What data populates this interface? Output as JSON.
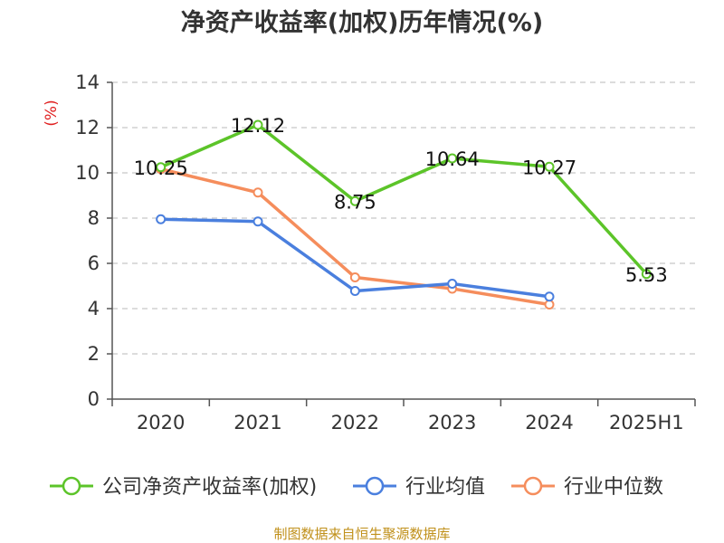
{
  "source": "制图数据来自恒生聚源数据库",
  "chart_data": {
    "type": "line",
    "title": "净资产收益率(加权)历年情况(%)",
    "ylabel": "(%)",
    "xlabel": "",
    "categories": [
      "2020",
      "2021",
      "2022",
      "2023",
      "2024",
      "2025H1"
    ],
    "ylim": [
      0,
      14
    ],
    "yticks": [
      0,
      2,
      4,
      6,
      8,
      10,
      12,
      14
    ],
    "grid": true,
    "legend_position": "bottom",
    "series": [
      {
        "name": "公司净资产收益率(加权)",
        "color": "#5cc429",
        "values": [
          10.25,
          12.12,
          8.75,
          10.64,
          10.27,
          5.53
        ],
        "labels": [
          "10.25",
          "12.12",
          "8.75",
          "10.64",
          "10.27",
          "5.53"
        ]
      },
      {
        "name": "行业均值",
        "color": "#4a7fde",
        "values": [
          7.95,
          7.85,
          4.78,
          5.1,
          4.53,
          null
        ],
        "labels": []
      },
      {
        "name": "行业中位数",
        "color": "#f58d5c",
        "values": [
          10.17,
          9.13,
          5.38,
          4.88,
          4.18,
          null
        ],
        "labels": []
      }
    ]
  }
}
